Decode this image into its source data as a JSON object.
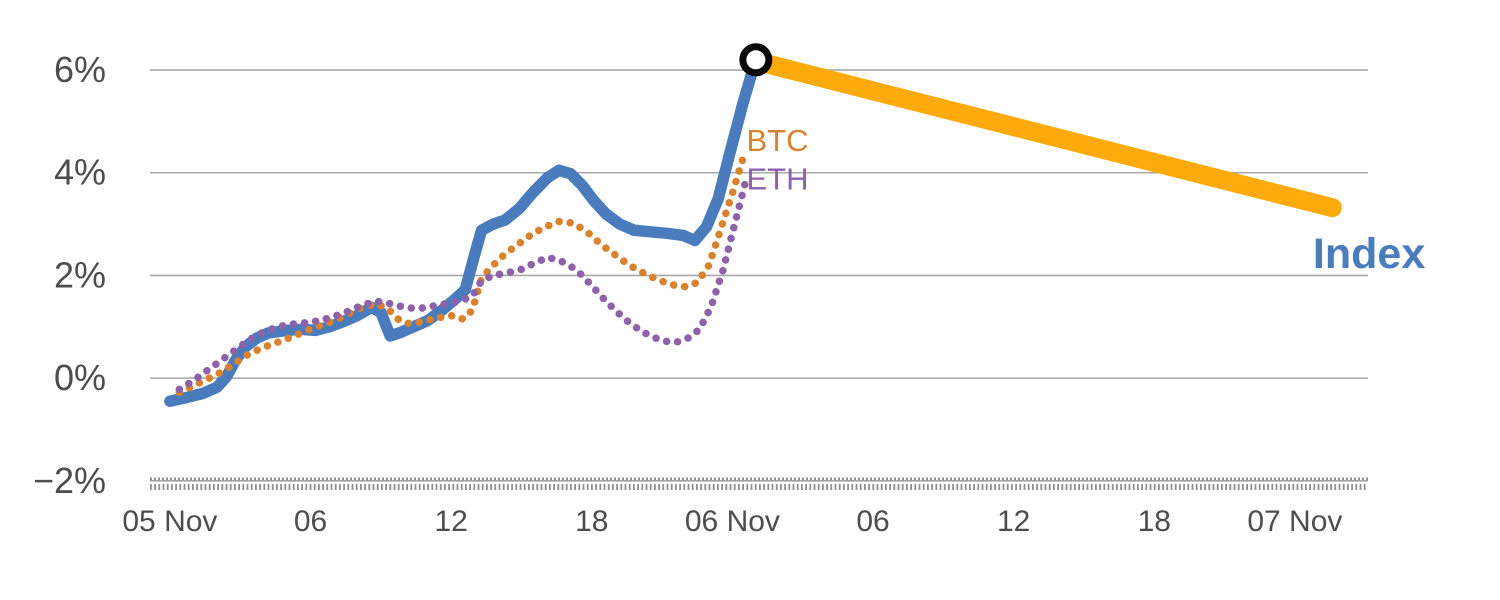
{
  "chart": {
    "background": "#ffffff",
    "axis_text_color": "#4d4d4d",
    "grid_color": "#a8a8a8",
    "bottom_band_color": "#8f8f8f"
  },
  "chart_data": {
    "type": "line",
    "title": "",
    "x_axis": {
      "unit": "hours since 05 Nov 00:00",
      "range_hours": [
        -0.85,
        51.12
      ],
      "tick_positions_hours": [
        0,
        6,
        12,
        18,
        24,
        30,
        36,
        42,
        48
      ],
      "tick_labels": [
        "05 Nov",
        "06",
        "12",
        "18",
        "06 Nov",
        "06",
        "12",
        "18",
        "07 Nov"
      ]
    },
    "y_axis": {
      "unit": "%",
      "range": [
        -2.14,
        6.78
      ],
      "tick_values": [
        -2,
        0,
        2,
        4,
        6
      ],
      "tick_labels": [
        "−2%",
        "0%",
        "2%",
        "4%",
        "6%"
      ]
    },
    "grid": "horizontal",
    "legend_position": "inline-labels",
    "series": [
      {
        "name": "Index",
        "label": "Index",
        "color": "#4a7cbd",
        "line_style": "solid",
        "line_width": 11.5,
        "label_size": 43,
        "label_weight": 700,
        "label_pos": [
          48.77,
          2.37
        ],
        "points": [
          [
            0,
            -0.45
          ],
          [
            0.7,
            -0.38
          ],
          [
            1.4,
            -0.3
          ],
          [
            2,
            -0.18
          ],
          [
            2.4,
            0.02
          ],
          [
            2.8,
            0.35
          ],
          [
            3.2,
            0.6
          ],
          [
            3.7,
            0.78
          ],
          [
            4.2,
            0.88
          ],
          [
            5,
            0.93
          ],
          [
            5.6,
            0.95
          ],
          [
            6.2,
            0.93
          ],
          [
            6.8,
            1.0
          ],
          [
            7.4,
            1.1
          ],
          [
            8,
            1.22
          ],
          [
            8.6,
            1.38
          ],
          [
            9,
            1.28
          ],
          [
            9.4,
            0.82
          ],
          [
            9.9,
            0.9
          ],
          [
            10.5,
            1.02
          ],
          [
            11,
            1.12
          ],
          [
            11.6,
            1.32
          ],
          [
            12.2,
            1.55
          ],
          [
            12.6,
            1.72
          ],
          [
            13,
            2.4
          ],
          [
            13.3,
            2.88
          ],
          [
            13.8,
            3.0
          ],
          [
            14.3,
            3.08
          ],
          [
            14.9,
            3.3
          ],
          [
            15.5,
            3.62
          ],
          [
            16.1,
            3.9
          ],
          [
            16.6,
            4.05
          ],
          [
            17.1,
            3.98
          ],
          [
            17.6,
            3.75
          ],
          [
            18.1,
            3.45
          ],
          [
            18.6,
            3.2
          ],
          [
            19.2,
            3.0
          ],
          [
            19.8,
            2.88
          ],
          [
            20.5,
            2.85
          ],
          [
            21.2,
            2.82
          ],
          [
            21.9,
            2.78
          ],
          [
            22.4,
            2.68
          ],
          [
            22.9,
            2.95
          ],
          [
            23.4,
            3.5
          ],
          [
            23.9,
            4.4
          ],
          [
            24.45,
            5.35
          ],
          [
            25,
            6.2
          ]
        ]
      },
      {
        "name": "BTC",
        "label": "BTC",
        "color": "#d9822e",
        "line_style": "dotted",
        "line_width": 7.5,
        "label_size": 31,
        "label_weight": 400,
        "label_pos": [
          24.6,
          4.58
        ],
        "points": [
          [
            0.4,
            -0.28
          ],
          [
            1,
            -0.15
          ],
          [
            1.6,
            -0.02
          ],
          [
            2.2,
            0.12
          ],
          [
            2.8,
            0.3
          ],
          [
            3.4,
            0.48
          ],
          [
            4,
            0.6
          ],
          [
            4.6,
            0.7
          ],
          [
            5.2,
            0.8
          ],
          [
            5.8,
            0.92
          ],
          [
            6.4,
            1.02
          ],
          [
            7,
            1.12
          ],
          [
            7.6,
            1.25
          ],
          [
            8.2,
            1.38
          ],
          [
            8.8,
            1.45
          ],
          [
            9.3,
            1.35
          ],
          [
            9.8,
            1.12
          ],
          [
            10.3,
            1.05
          ],
          [
            10.9,
            1.12
          ],
          [
            11.5,
            1.18
          ],
          [
            12.1,
            1.22
          ],
          [
            12.5,
            1.15
          ],
          [
            12.9,
            1.32
          ],
          [
            13.3,
            1.95
          ],
          [
            13.8,
            2.2
          ],
          [
            14.3,
            2.42
          ],
          [
            14.9,
            2.62
          ],
          [
            15.5,
            2.82
          ],
          [
            16.1,
            2.96
          ],
          [
            16.6,
            3.05
          ],
          [
            17.2,
            3.02
          ],
          [
            17.8,
            2.85
          ],
          [
            18.4,
            2.6
          ],
          [
            19,
            2.4
          ],
          [
            19.6,
            2.2
          ],
          [
            20.2,
            2.05
          ],
          [
            20.8,
            1.92
          ],
          [
            21.4,
            1.82
          ],
          [
            22,
            1.78
          ],
          [
            22.5,
            1.86
          ],
          [
            23,
            2.2
          ],
          [
            23.5,
            2.9
          ],
          [
            24,
            3.6
          ],
          [
            24.5,
            4.35
          ]
        ]
      },
      {
        "name": "ETH",
        "label": "ETH",
        "color": "#8d62a8",
        "line_style": "dotted",
        "line_width": 7.5,
        "label_size": 31,
        "label_weight": 400,
        "label_pos": [
          24.6,
          3.83
        ],
        "points": [
          [
            0.4,
            -0.22
          ],
          [
            1,
            -0.05
          ],
          [
            1.6,
            0.15
          ],
          [
            2.2,
            0.35
          ],
          [
            2.8,
            0.55
          ],
          [
            3.4,
            0.75
          ],
          [
            4,
            0.9
          ],
          [
            4.6,
            1.0
          ],
          [
            5.2,
            1.05
          ],
          [
            5.8,
            1.08
          ],
          [
            6.4,
            1.12
          ],
          [
            7,
            1.2
          ],
          [
            7.6,
            1.3
          ],
          [
            8.2,
            1.42
          ],
          [
            8.8,
            1.5
          ],
          [
            9.4,
            1.45
          ],
          [
            10,
            1.38
          ],
          [
            10.6,
            1.35
          ],
          [
            11.2,
            1.4
          ],
          [
            11.8,
            1.45
          ],
          [
            12.4,
            1.5
          ],
          [
            12.9,
            1.6
          ],
          [
            13.3,
            1.9
          ],
          [
            13.8,
            2.0
          ],
          [
            14.4,
            2.05
          ],
          [
            15,
            2.12
          ],
          [
            15.6,
            2.25
          ],
          [
            16.1,
            2.35
          ],
          [
            16.6,
            2.3
          ],
          [
            17.1,
            2.18
          ],
          [
            17.6,
            2.0
          ],
          [
            18.1,
            1.75
          ],
          [
            18.6,
            1.5
          ],
          [
            19.1,
            1.28
          ],
          [
            19.6,
            1.08
          ],
          [
            20.1,
            0.92
          ],
          [
            20.6,
            0.8
          ],
          [
            21.1,
            0.72
          ],
          [
            21.6,
            0.7
          ],
          [
            22.1,
            0.78
          ],
          [
            22.6,
            0.95
          ],
          [
            23.1,
            1.4
          ],
          [
            23.6,
            2.1
          ],
          [
            24.1,
            3.0
          ],
          [
            24.6,
            3.9
          ]
        ]
      },
      {
        "name": "Index-projection",
        "label": "",
        "color": "#feaa0a",
        "line_style": "solid",
        "line_width": 19,
        "points": [
          [
            25.05,
            6.17
          ],
          [
            49.6,
            3.32
          ]
        ]
      }
    ],
    "marker": {
      "series": "Index",
      "t": 25,
      "value": 6.2,
      "shape": "circle",
      "radius": 13,
      "fill": "#ffffff",
      "stroke": "#0a0a0a",
      "stroke_width": 7
    }
  }
}
